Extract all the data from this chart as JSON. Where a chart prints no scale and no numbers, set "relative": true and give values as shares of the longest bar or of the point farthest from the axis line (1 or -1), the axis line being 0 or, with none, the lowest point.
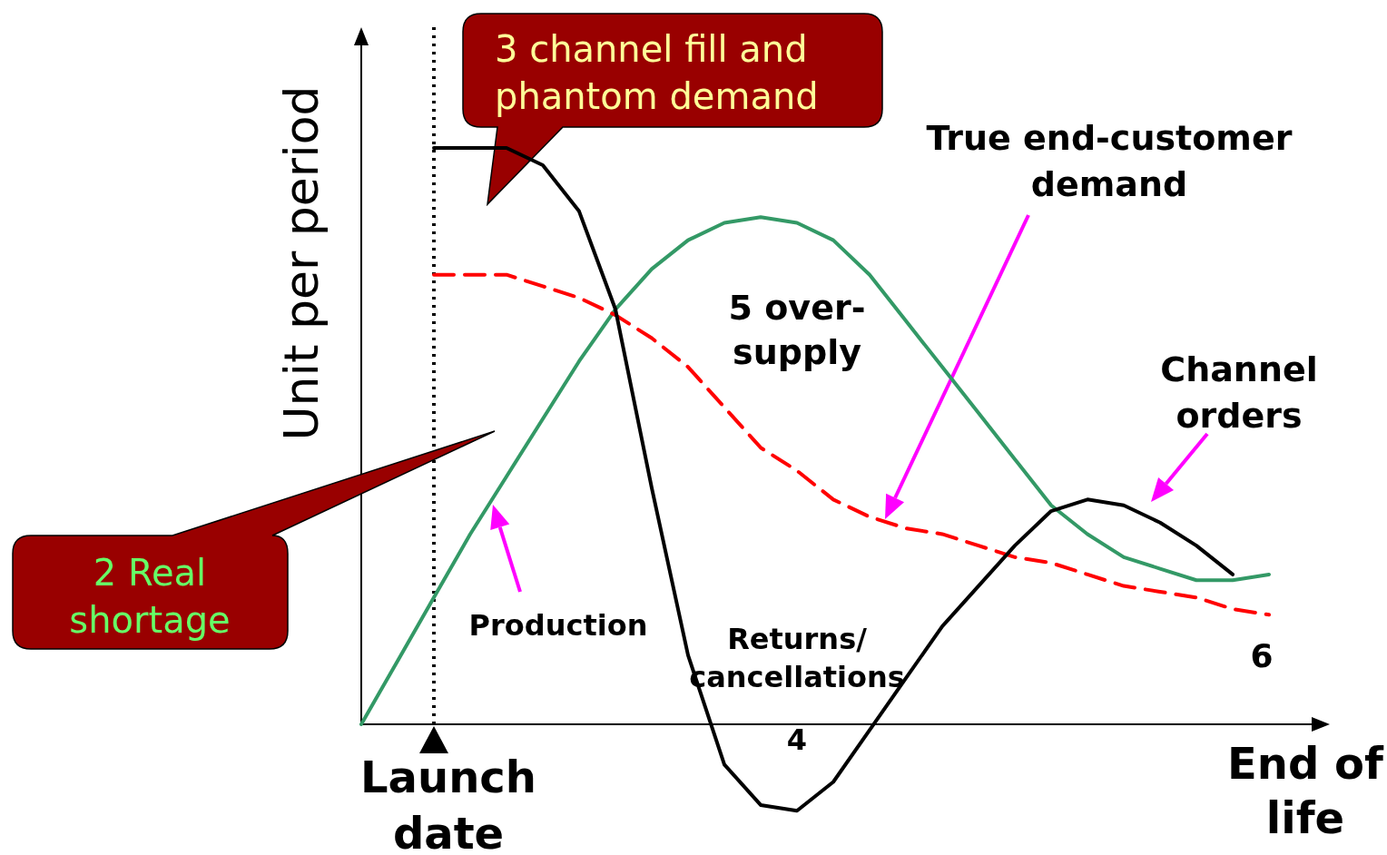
{
  "chart_data": {
    "type": "line",
    "relative": true,
    "legend": false,
    "ylabel": "Unit per period",
    "xlabel": "End of life",
    "categories": [
      null,
      null,
      null,
      null,
      null,
      null,
      null,
      null,
      null,
      null,
      null,
      null,
      null,
      null,
      null,
      null,
      null,
      null,
      null,
      null,
      null,
      null,
      null,
      null,
      null,
      null
    ],
    "series": [
      {
        "name": "Production",
        "color": "#339966",
        "line_style": "solid",
        "values": [
          0,
          0.11,
          0.22,
          0.33,
          0.43,
          0.53,
          0.63,
          0.72,
          0.79,
          0.84,
          0.87,
          0.88,
          0.87,
          0.84,
          0.78,
          0.7,
          0.62,
          0.54,
          0.46,
          0.38,
          0.33,
          0.29,
          0.27,
          0.25,
          0.25,
          0.26
        ]
      },
      {
        "name": "True end-customer demand",
        "color": "#ff0000",
        "line_style": "dashed",
        "values": [
          null,
          null,
          0.78,
          0.78,
          0.78,
          0.76,
          0.74,
          0.71,
          0.67,
          0.62,
          0.55,
          0.48,
          0.44,
          0.39,
          0.36,
          0.34,
          0.33,
          0.31,
          0.29,
          0.28,
          0.26,
          0.24,
          0.23,
          0.22,
          0.2,
          0.19
        ]
      },
      {
        "name": "Channel orders",
        "color": "#000000",
        "line_style": "solid",
        "values": [
          null,
          null,
          1.0,
          1.0,
          1.0,
          0.97,
          0.89,
          0.72,
          0.41,
          0.12,
          -0.07,
          -0.14,
          -0.15,
          -0.1,
          -0.01,
          0.08,
          0.17,
          0.24,
          0.31,
          0.37,
          0.39,
          0.38,
          0.35,
          0.31,
          0.26,
          null
        ]
      }
    ],
    "annotations": [
      "Launch date",
      "3 channel fill and phantom demand",
      "2 Real shortage",
      "5 over-supply",
      "Returns/ cancellations",
      "4",
      "6"
    ]
  }
}
